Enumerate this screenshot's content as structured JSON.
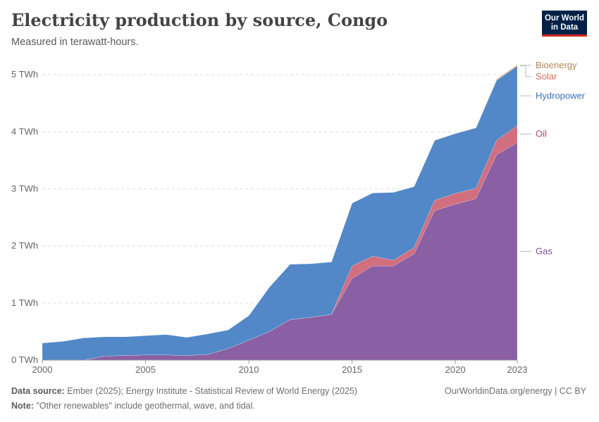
{
  "header": {
    "title": "Electricity production by source, Congo",
    "subtitle": "Measured in terawatt-hours.",
    "logo_line1": "Our World",
    "logo_line2": "in Data"
  },
  "footer": {
    "source_label": "Data source:",
    "source_text": "Ember (2025); Energy Institute - Statistical Review of World Energy (2025)",
    "note_label": "Note:",
    "note_text": "\"Other renewables\" include geothermal, wave, and tidal.",
    "right_text": "OurWorldinData.org/energy | CC BY"
  },
  "chart_data": {
    "type": "area",
    "stacked": true,
    "title": "Electricity production by source, Congo",
    "subtitle": "Measured in terawatt-hours.",
    "unit": "TWh",
    "x": [
      2000,
      2001,
      2002,
      2003,
      2004,
      2005,
      2006,
      2007,
      2008,
      2009,
      2010,
      2011,
      2012,
      2013,
      2014,
      2015,
      2016,
      2017,
      2018,
      2019,
      2020,
      2021,
      2022,
      2023
    ],
    "xlim": [
      2000,
      2023
    ],
    "x_ticks": [
      {
        "value": 2000,
        "label": "2000"
      },
      {
        "value": 2005,
        "label": "2005"
      },
      {
        "value": 2010,
        "label": "2010"
      },
      {
        "value": 2015,
        "label": "2015"
      },
      {
        "value": 2020,
        "label": "2020"
      },
      {
        "value": 2023,
        "label": "2023"
      }
    ],
    "ylim": [
      0,
      5.2
    ],
    "y_ticks": [
      {
        "value": 0,
        "label": "0 TWh"
      },
      {
        "value": 1,
        "label": "1 TWh"
      },
      {
        "value": 2,
        "label": "2 TWh"
      },
      {
        "value": 3,
        "label": "3 TWh"
      },
      {
        "value": 4,
        "label": "4 TWh"
      },
      {
        "value": 5,
        "label": "5 TWh"
      }
    ],
    "grid": true,
    "legend_position": "right",
    "series": [
      {
        "name": "Gas",
        "color": "#8a5fa3",
        "label_color": "#7d4f9c",
        "values": [
          0,
          0,
          0,
          0.07,
          0.08,
          0.09,
          0.09,
          0.08,
          0.1,
          0.2,
          0.35,
          0.5,
          0.71,
          0.75,
          0.8,
          1.43,
          1.65,
          1.65,
          1.86,
          2.62,
          2.73,
          2.83,
          3.6,
          3.81
        ]
      },
      {
        "name": "Oil",
        "color": "#d16f7f",
        "label_color": "#c83e5f",
        "values": [
          0,
          0,
          0,
          0,
          0,
          0,
          0,
          0,
          0,
          0,
          0,
          0,
          0,
          0,
          0,
          0.22,
          0.17,
          0.1,
          0.11,
          0.18,
          0.19,
          0.18,
          0.25,
          0.3
        ]
      },
      {
        "name": "Hydropower",
        "color": "#5288c8",
        "label_color": "#3873b8",
        "values": [
          0.3,
          0.33,
          0.39,
          0.34,
          0.33,
          0.34,
          0.36,
          0.32,
          0.36,
          0.33,
          0.43,
          0.78,
          0.97,
          0.94,
          0.92,
          1.1,
          1.11,
          1.19,
          1.07,
          1.05,
          1.05,
          1.06,
          1.05,
          1.04
        ]
      },
      {
        "name": "Solar",
        "color": "#d57764",
        "label_color": "#d0705a",
        "values": [
          0,
          0,
          0,
          0,
          0,
          0,
          0,
          0,
          0,
          0,
          0,
          0,
          0,
          0,
          0,
          0,
          0,
          0,
          0,
          0,
          0,
          0,
          0.01,
          0.01
        ]
      },
      {
        "name": "Bioenergy",
        "color": "#b7905c",
        "label_color": "#b08855",
        "values": [
          0,
          0,
          0,
          0,
          0,
          0,
          0,
          0,
          0,
          0,
          0,
          0,
          0,
          0,
          0,
          0,
          0,
          0,
          0,
          0,
          0,
          0,
          0.01,
          0.01
        ]
      }
    ]
  }
}
